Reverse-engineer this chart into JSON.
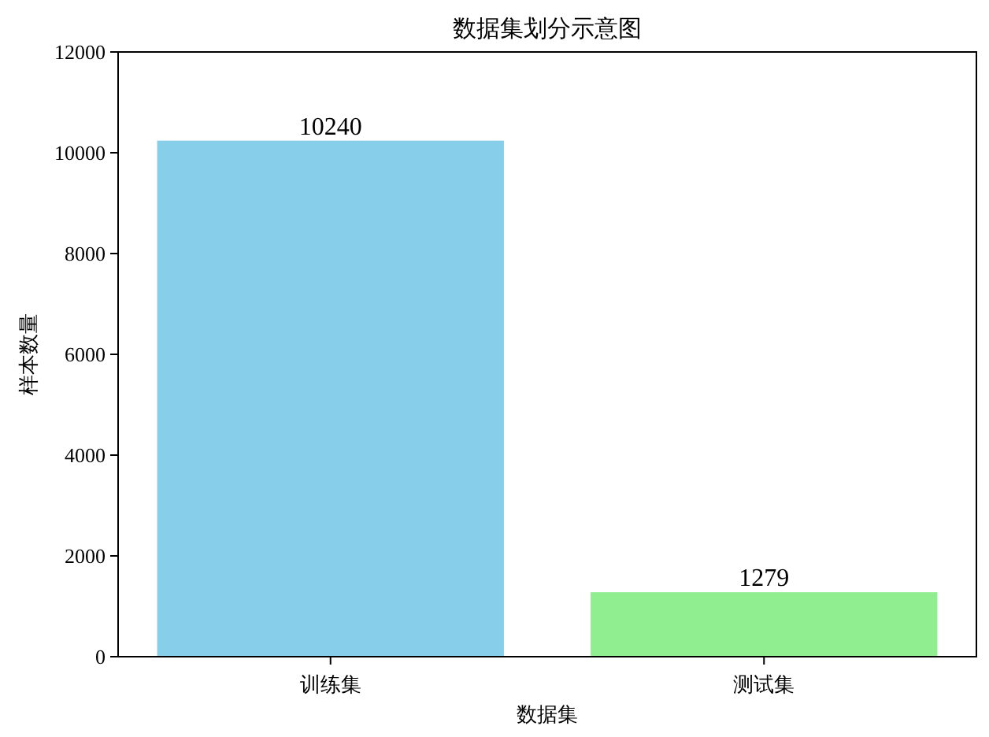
{
  "chart_data": {
    "type": "bar",
    "title": "数据集划分示意图",
    "xlabel": "数据集",
    "ylabel": "样本数量",
    "categories": [
      "训练集",
      "测试集"
    ],
    "values": [
      10240,
      1279
    ],
    "colors": [
      "#87ceeb",
      "#90ee90"
    ],
    "ylim": [
      0,
      12000
    ],
    "yticks": [
      0,
      2000,
      4000,
      6000,
      8000,
      10000,
      12000
    ],
    "data_labels": true,
    "grid": false,
    "legend": false
  }
}
